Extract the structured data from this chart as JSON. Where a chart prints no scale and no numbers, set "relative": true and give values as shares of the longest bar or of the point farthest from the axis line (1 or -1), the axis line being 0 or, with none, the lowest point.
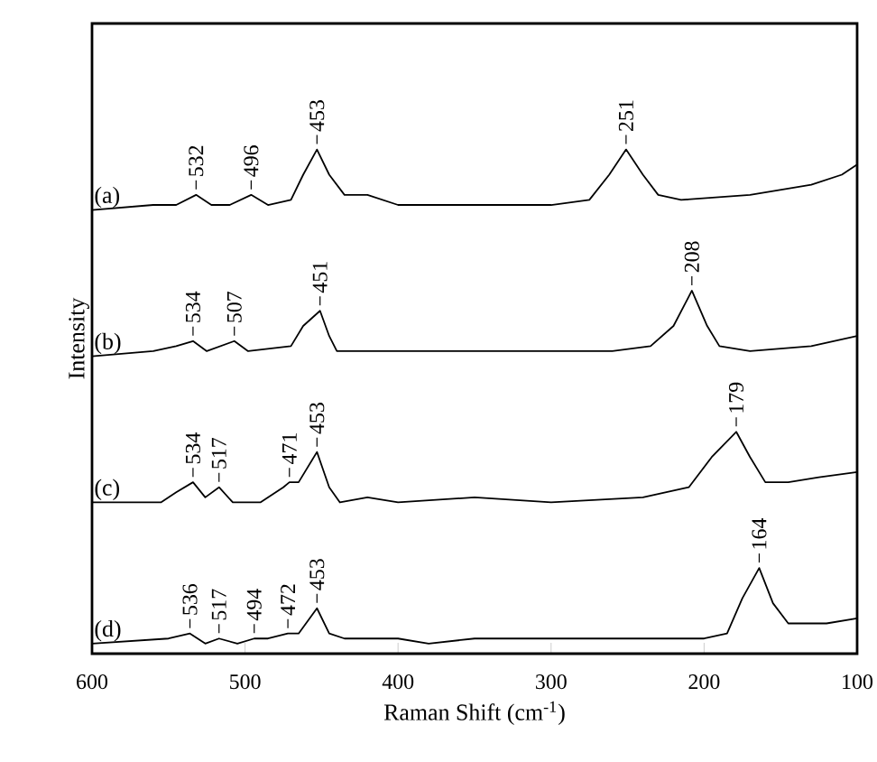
{
  "chart_data": {
    "type": "line",
    "relative": true,
    "xlabel": "Raman Shift (cm$^{-1}$)",
    "ylabel": "Intensity",
    "xlim": [
      600,
      100
    ],
    "xticks": [
      600,
      500,
      400,
      300,
      200,
      100
    ],
    "tick_labels": "x",
    "series": [
      {
        "name": "(a)",
        "color": "#000000",
        "x": [
          600,
          560,
          545,
          532,
          522,
          510,
          496,
          485,
          470,
          462,
          453,
          445,
          435,
          420,
          400,
          350,
          300,
          275,
          262,
          251,
          240,
          230,
          215,
          170,
          130,
          110,
          100
        ],
        "values": [
          0.88,
          0.89,
          0.89,
          0.91,
          0.89,
          0.89,
          0.91,
          0.89,
          0.9,
          0.95,
          1.0,
          0.95,
          0.91,
          0.91,
          0.89,
          0.89,
          0.89,
          0.9,
          0.95,
          1.0,
          0.95,
          0.91,
          0.9,
          0.91,
          0.93,
          0.95,
          0.97
        ]
      },
      {
        "name": "(b)",
        "color": "#000000",
        "x": [
          600,
          560,
          545,
          534,
          525,
          507,
          498,
          470,
          462,
          451,
          445,
          440,
          430,
          420,
          390,
          380,
          350,
          320,
          260,
          235,
          220,
          208,
          198,
          190,
          170,
          130,
          100
        ],
        "values": [
          0.59,
          0.6,
          0.61,
          0.62,
          0.6,
          0.62,
          0.6,
          0.61,
          0.65,
          0.68,
          0.63,
          0.6,
          0.6,
          0.6,
          0.6,
          0.6,
          0.6,
          0.6,
          0.6,
          0.61,
          0.65,
          0.72,
          0.65,
          0.61,
          0.6,
          0.61,
          0.63
        ]
      },
      {
        "name": "(c)",
        "color": "#000000",
        "x": [
          600,
          555,
          545,
          534,
          526,
          517,
          508,
          490,
          475,
          471,
          465,
          453,
          445,
          438,
          420,
          400,
          350,
          300,
          240,
          210,
          195,
          179,
          170,
          160,
          145,
          125,
          100
        ],
        "values": [
          0.3,
          0.3,
          0.32,
          0.34,
          0.31,
          0.33,
          0.3,
          0.3,
          0.33,
          0.34,
          0.34,
          0.4,
          0.33,
          0.3,
          0.31,
          0.3,
          0.31,
          0.3,
          0.31,
          0.33,
          0.39,
          0.44,
          0.39,
          0.34,
          0.34,
          0.35,
          0.36
        ]
      },
      {
        "name": "(d)",
        "color": "#000000",
        "x": [
          600,
          550,
          536,
          526,
          517,
          505,
          494,
          485,
          472,
          465,
          453,
          445,
          435,
          410,
          400,
          380,
          350,
          300,
          250,
          200,
          185,
          175,
          164,
          155,
          145,
          120,
          100
        ],
        "values": [
          0.02,
          0.03,
          0.04,
          0.02,
          0.03,
          0.02,
          0.03,
          0.03,
          0.04,
          0.04,
          0.09,
          0.04,
          0.03,
          0.03,
          0.03,
          0.02,
          0.03,
          0.03,
          0.03,
          0.03,
          0.04,
          0.11,
          0.17,
          0.1,
          0.06,
          0.06,
          0.07
        ]
      }
    ],
    "annotations": [
      {
        "text": "532",
        "x": 532,
        "y": 0.91
      },
      {
        "text": "496",
        "x": 496,
        "y": 0.91
      },
      {
        "text": "453",
        "x": 453,
        "y": 1.0
      },
      {
        "text": "251",
        "x": 251,
        "y": 1.0
      },
      {
        "text": "534",
        "x": 534,
        "y": 0.62
      },
      {
        "text": "507",
        "x": 507,
        "y": 0.62
      },
      {
        "text": "451",
        "x": 451,
        "y": 0.68
      },
      {
        "text": "208",
        "x": 208,
        "y": 0.72
      },
      {
        "text": "534",
        "x": 534,
        "y": 0.34
      },
      {
        "text": "517",
        "x": 517,
        "y": 0.33
      },
      {
        "text": "471",
        "x": 471,
        "y": 0.34
      },
      {
        "text": "453",
        "x": 453,
        "y": 0.4
      },
      {
        "text": "179",
        "x": 179,
        "y": 0.44
      },
      {
        "text": "536",
        "x": 536,
        "y": 0.04
      },
      {
        "text": "517",
        "x": 517,
        "y": 0.03
      },
      {
        "text": "494",
        "x": 494,
        "y": 0.03
      },
      {
        "text": "472",
        "x": 472,
        "y": 0.04
      },
      {
        "text": "453",
        "x": 453,
        "y": 0.09
      },
      {
        "text": "164",
        "x": 164,
        "y": 0.17
      }
    ]
  }
}
